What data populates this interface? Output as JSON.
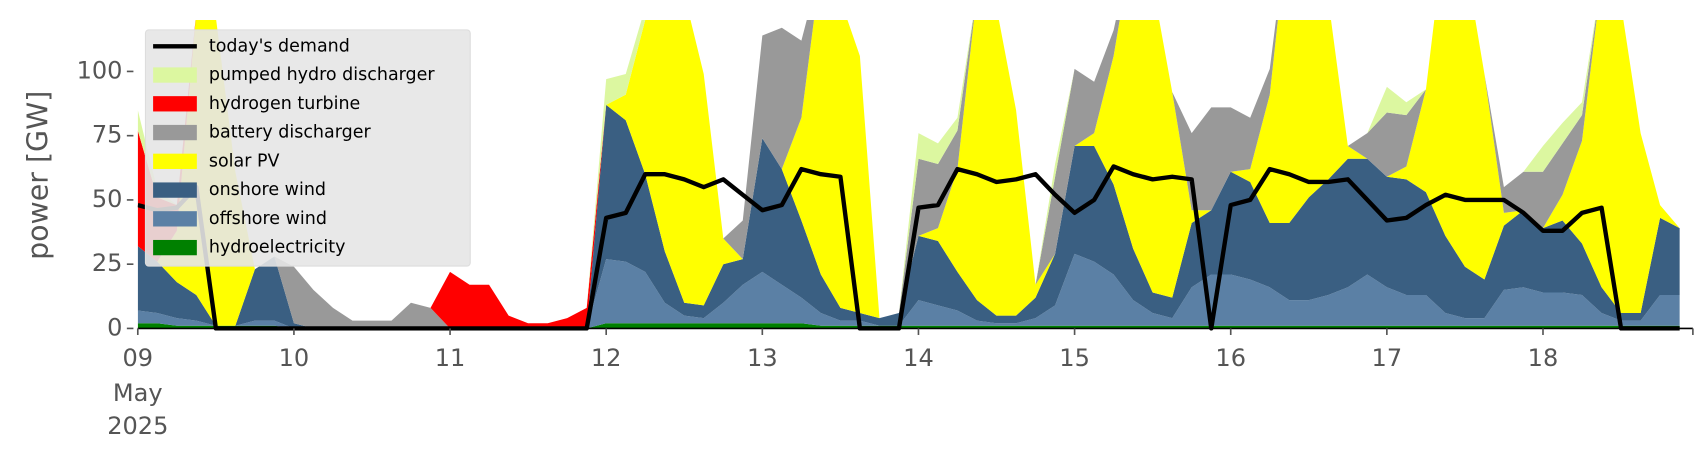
{
  "chart_data": {
    "type": "area",
    "ylabel": "power [GW]",
    "x": [
      9,
      9.125,
      9.25,
      9.375,
      9.5,
      9.625,
      9.75,
      9.875,
      10,
      10.125,
      10.25,
      10.375,
      10.5,
      10.625,
      10.75,
      10.875,
      11,
      11.125,
      11.25,
      11.375,
      11.5,
      11.625,
      11.75,
      11.875,
      12,
      12.125,
      12.25,
      12.375,
      12.5,
      12.625,
      12.75,
      12.875,
      13,
      13.125,
      13.25,
      13.375,
      13.5,
      13.625,
      13.75,
      13.875,
      14,
      14.125,
      14.25,
      14.375,
      14.5,
      14.625,
      14.75,
      14.875,
      15,
      15.125,
      15.25,
      15.375,
      15.5,
      15.625,
      15.75,
      15.875,
      16,
      16.125,
      16.25,
      16.375,
      16.5,
      16.625,
      16.75,
      16.875,
      17,
      17.125,
      17.25,
      17.375,
      17.5,
      17.625,
      17.75,
      17.875,
      18,
      18.125,
      18.25,
      18.375,
      18.5,
      18.625,
      18.75,
      18.875
    ],
    "xlim": [
      9,
      18.96
    ],
    "xticks": [
      {
        "value": 9,
        "label": "09"
      },
      10,
      11,
      12,
      13,
      14,
      15,
      16,
      17,
      18
    ],
    "x_date_labels": [
      "May",
      "2025"
    ],
    "ylim": [
      0,
      120
    ],
    "yticks": [
      0,
      25,
      50,
      75,
      100
    ],
    "legend": "upper left",
    "series": [
      {
        "name": "today's demand",
        "type": "line",
        "color": "#000000",
        "values": [
          48,
          46,
          47,
          55,
          0,
          0,
          0,
          0,
          0,
          0,
          0,
          0,
          0,
          0,
          0,
          0,
          0,
          0,
          0,
          0,
          0,
          0,
          0,
          0,
          43,
          45,
          60,
          60,
          58,
          55,
          58,
          52,
          46,
          48,
          62,
          60,
          59,
          0,
          0,
          0,
          47,
          48,
          62,
          60,
          57,
          58,
          60,
          52,
          45,
          50,
          63,
          60,
          58,
          59,
          58,
          0,
          48,
          50,
          62,
          60,
          57,
          57,
          58,
          50,
          42,
          43,
          48,
          52,
          50,
          50,
          50,
          45,
          38,
          38,
          45,
          47,
          0,
          0,
          0,
          0
        ]
      },
      {
        "name": "pumped hydro discharger",
        "color": "#dcf7a0",
        "values": [
          8,
          3,
          0,
          0,
          0,
          0,
          0,
          0,
          0,
          0,
          0,
          0,
          0,
          0,
          0,
          0,
          0,
          0,
          0,
          0,
          0,
          0,
          0,
          0,
          10,
          8,
          5,
          0,
          0,
          0,
          0,
          0,
          0,
          0,
          0,
          0,
          0,
          0,
          0,
          0,
          10,
          8,
          5,
          0,
          0,
          0,
          0,
          5,
          0,
          0,
          0,
          0,
          0,
          0,
          0,
          0,
          0,
          0,
          0,
          0,
          0,
          0,
          0,
          0,
          10,
          5,
          0,
          0,
          0,
          0,
          0,
          0,
          10,
          8,
          5,
          0,
          0,
          0,
          0,
          0
        ]
      },
      {
        "name": "hydrogen turbine",
        "color": "#ff0000",
        "values": [
          45,
          25,
          10,
          0,
          0,
          0,
          0,
          0,
          0,
          0,
          0,
          0,
          0,
          0,
          0,
          0,
          22,
          17,
          17,
          5,
          2,
          2,
          4,
          8,
          0,
          0,
          0,
          0,
          0,
          0,
          0,
          0,
          0,
          0,
          0,
          0,
          0,
          0,
          0,
          0,
          0,
          0,
          0,
          0,
          0,
          0,
          0,
          0,
          0,
          0,
          0,
          0,
          0,
          0,
          0,
          0,
          0,
          0,
          0,
          0,
          0,
          0,
          0,
          0,
          0,
          0,
          0,
          0,
          0,
          0,
          0,
          0,
          0,
          0,
          0,
          0,
          0,
          0,
          0,
          0
        ]
      },
      {
        "name": "battery discharger",
        "color": "#999999",
        "values": [
          0,
          0,
          0,
          0,
          0,
          0,
          0,
          0,
          22,
          15,
          8,
          3,
          3,
          3,
          10,
          8,
          0,
          0,
          0,
          0,
          0,
          0,
          0,
          0,
          0,
          0,
          0,
          0,
          0,
          0,
          0,
          15,
          40,
          55,
          30,
          0,
          0,
          0,
          0,
          0,
          30,
          25,
          15,
          0,
          0,
          0,
          0,
          30,
          30,
          20,
          10,
          0,
          0,
          0,
          30,
          40,
          25,
          20,
          10,
          0,
          0,
          0,
          0,
          10,
          25,
          20,
          0,
          0,
          0,
          0,
          10,
          15,
          22,
          20,
          10,
          0,
          0,
          0,
          0,
          0
        ]
      },
      {
        "name": "solar PV",
        "color": "#ffff00",
        "values": [
          0,
          0,
          20,
          110,
          120,
          60,
          0,
          0,
          0,
          0,
          0,
          0,
          0,
          0,
          0,
          0,
          0,
          0,
          0,
          0,
          0,
          0,
          0,
          0,
          0,
          10,
          60,
          120,
          120,
          90,
          10,
          0,
          0,
          0,
          40,
          120,
          120,
          100,
          0,
          0,
          0,
          5,
          40,
          120,
          120,
          80,
          5,
          0,
          0,
          5,
          50,
          120,
          120,
          80,
          5,
          0,
          0,
          5,
          50,
          120,
          120,
          70,
          5,
          0,
          0,
          5,
          40,
          120,
          120,
          80,
          5,
          0,
          0,
          10,
          40,
          120,
          120,
          70,
          5,
          0
        ]
      },
      {
        "name": "onshore wind",
        "color": "#3a5f82",
        "values": [
          25,
          20,
          14,
          10,
          0,
          0,
          20,
          25,
          2,
          0,
          0,
          0,
          0,
          0,
          0,
          0,
          0,
          0,
          0,
          0,
          0,
          0,
          0,
          0,
          60,
          55,
          38,
          20,
          5,
          5,
          15,
          10,
          52,
          45,
          30,
          15,
          5,
          3,
          3,
          5,
          25,
          25,
          15,
          8,
          3,
          3,
          8,
          20,
          42,
          45,
          35,
          20,
          8,
          8,
          25,
          25,
          40,
          38,
          25,
          30,
          40,
          45,
          50,
          45,
          43,
          45,
          40,
          30,
          20,
          15,
          25,
          30,
          25,
          28,
          20,
          10,
          3,
          3,
          30,
          26
        ]
      },
      {
        "name": "offshore wind",
        "color": "#5b80a5",
        "values": [
          5,
          4,
          3,
          2,
          0,
          0,
          2,
          2,
          0,
          0,
          0,
          0,
          0,
          0,
          0,
          0,
          0,
          0,
          0,
          0,
          0,
          0,
          0,
          0,
          25,
          24,
          20,
          8,
          3,
          2,
          8,
          15,
          20,
          15,
          10,
          5,
          2,
          2,
          0,
          0,
          10,
          8,
          6,
          2,
          1,
          1,
          3,
          8,
          28,
          25,
          20,
          10,
          5,
          3,
          15,
          20,
          20,
          18,
          15,
          10,
          10,
          12,
          15,
          20,
          15,
          12,
          12,
          5,
          3,
          3,
          14,
          15,
          13,
          13,
          12,
          5,
          2,
          2,
          12,
          12
        ]
      },
      {
        "name": "hydroelectricity",
        "color": "#008000",
        "values": [
          2,
          2,
          1,
          1,
          1,
          1,
          1,
          1,
          0,
          0,
          0,
          0,
          0,
          0,
          0,
          0,
          0,
          0,
          0,
          0,
          0,
          0,
          0,
          0,
          2,
          2,
          2,
          2,
          2,
          2,
          2,
          2,
          2,
          2,
          2,
          1,
          1,
          1,
          1,
          1,
          1,
          1,
          1,
          1,
          1,
          1,
          1,
          1,
          1,
          1,
          1,
          1,
          1,
          1,
          1,
          1,
          1,
          1,
          1,
          1,
          1,
          1,
          1,
          1,
          1,
          1,
          1,
          1,
          1,
          1,
          1,
          1,
          1,
          1,
          1,
          1,
          1,
          1,
          1,
          1
        ]
      }
    ]
  }
}
